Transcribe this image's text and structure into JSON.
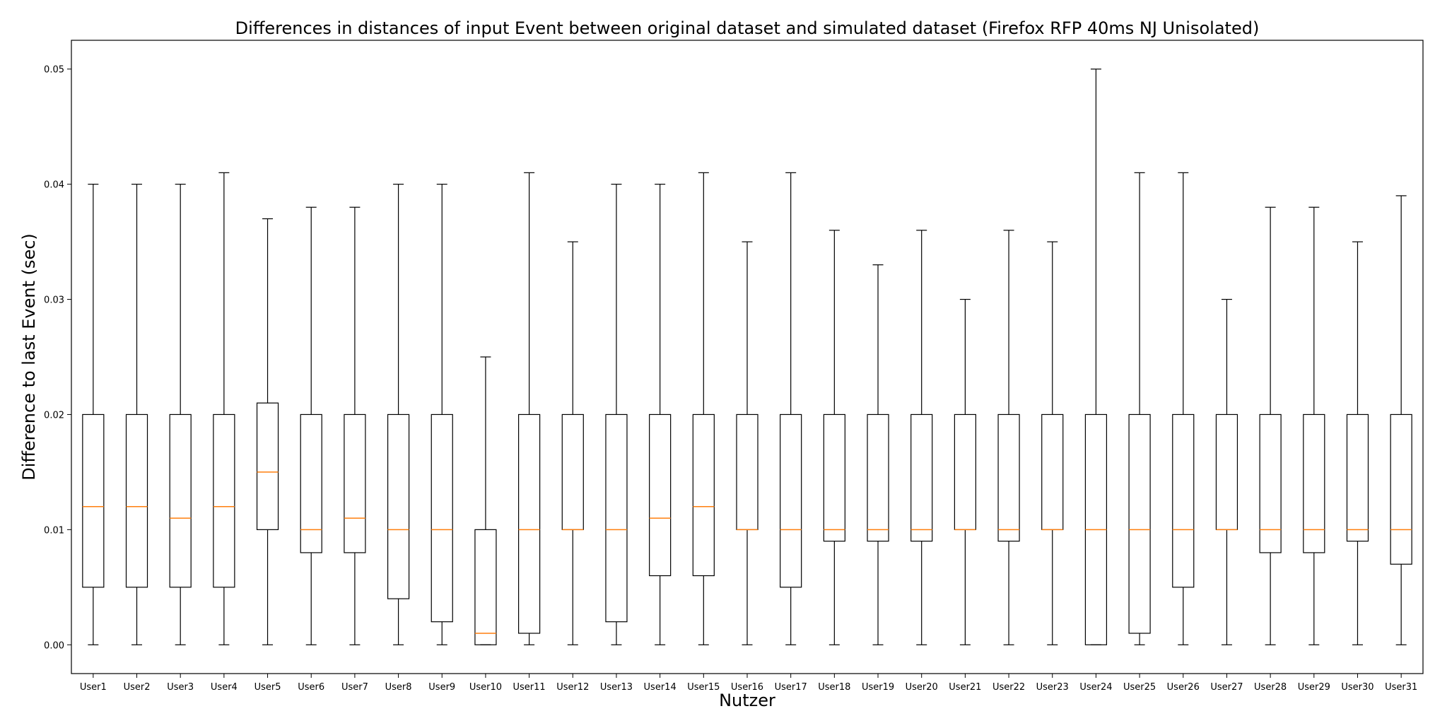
{
  "chart_data": {
    "type": "boxplot",
    "title": "Differences in distances of input Event between original dataset and simulated dataset (Firefox RFP 40ms NJ Unisolated)",
    "xlabel": "Nutzer",
    "ylabel": "Difference to last Event (sec)",
    "ylim": [
      -0.0025,
      0.0525
    ],
    "yticks": [
      0.0,
      0.01,
      0.02,
      0.03,
      0.04,
      0.05
    ],
    "ytick_labels": [
      "0.00",
      "0.01",
      "0.02",
      "0.03",
      "0.04",
      "0.05"
    ],
    "grid": false,
    "colors": {
      "box": "#000000",
      "median": "#ff7f0e"
    },
    "categories": [
      "User1",
      "User2",
      "User3",
      "User4",
      "User5",
      "User6",
      "User7",
      "User8",
      "User9",
      "User10",
      "User11",
      "User12",
      "User13",
      "User14",
      "User15",
      "User16",
      "User17",
      "User18",
      "User19",
      "User20",
      "User21",
      "User22",
      "User23",
      "User24",
      "User25",
      "User26",
      "User27",
      "User28",
      "User29",
      "User30",
      "User31"
    ],
    "boxes": [
      {
        "whislo": 0.0,
        "q1": 0.005,
        "med": 0.012,
        "q3": 0.02,
        "whishi": 0.04
      },
      {
        "whislo": 0.0,
        "q1": 0.005,
        "med": 0.012,
        "q3": 0.02,
        "whishi": 0.04
      },
      {
        "whislo": 0.0,
        "q1": 0.005,
        "med": 0.011,
        "q3": 0.02,
        "whishi": 0.04
      },
      {
        "whislo": 0.0,
        "q1": 0.005,
        "med": 0.012,
        "q3": 0.02,
        "whishi": 0.041
      },
      {
        "whislo": 0.0,
        "q1": 0.01,
        "med": 0.015,
        "q3": 0.021,
        "whishi": 0.037
      },
      {
        "whislo": 0.0,
        "q1": 0.008,
        "med": 0.01,
        "q3": 0.02,
        "whishi": 0.038
      },
      {
        "whislo": 0.0,
        "q1": 0.008,
        "med": 0.011,
        "q3": 0.02,
        "whishi": 0.038
      },
      {
        "whislo": 0.0,
        "q1": 0.004,
        "med": 0.01,
        "q3": 0.02,
        "whishi": 0.04
      },
      {
        "whislo": 0.0,
        "q1": 0.002,
        "med": 0.01,
        "q3": 0.02,
        "whishi": 0.04
      },
      {
        "whislo": 0.0,
        "q1": 0.0,
        "med": 0.001,
        "q3": 0.01,
        "whishi": 0.025
      },
      {
        "whislo": 0.0,
        "q1": 0.001,
        "med": 0.01,
        "q3": 0.02,
        "whishi": 0.041
      },
      {
        "whislo": 0.0,
        "q1": 0.01,
        "med": 0.01,
        "q3": 0.02,
        "whishi": 0.035
      },
      {
        "whislo": 0.0,
        "q1": 0.002,
        "med": 0.01,
        "q3": 0.02,
        "whishi": 0.04
      },
      {
        "whislo": 0.0,
        "q1": 0.006,
        "med": 0.011,
        "q3": 0.02,
        "whishi": 0.04
      },
      {
        "whislo": 0.0,
        "q1": 0.006,
        "med": 0.012,
        "q3": 0.02,
        "whishi": 0.041
      },
      {
        "whislo": 0.0,
        "q1": 0.01,
        "med": 0.01,
        "q3": 0.02,
        "whishi": 0.035
      },
      {
        "whislo": 0.0,
        "q1": 0.005,
        "med": 0.01,
        "q3": 0.02,
        "whishi": 0.041
      },
      {
        "whislo": 0.0,
        "q1": 0.009,
        "med": 0.01,
        "q3": 0.02,
        "whishi": 0.036
      },
      {
        "whislo": 0.0,
        "q1": 0.009,
        "med": 0.01,
        "q3": 0.02,
        "whishi": 0.033
      },
      {
        "whislo": 0.0,
        "q1": 0.009,
        "med": 0.01,
        "q3": 0.02,
        "whishi": 0.036
      },
      {
        "whislo": 0.0,
        "q1": 0.01,
        "med": 0.01,
        "q3": 0.02,
        "whishi": 0.03
      },
      {
        "whislo": 0.0,
        "q1": 0.009,
        "med": 0.01,
        "q3": 0.02,
        "whishi": 0.036
      },
      {
        "whislo": 0.0,
        "q1": 0.01,
        "med": 0.01,
        "q3": 0.02,
        "whishi": 0.035
      },
      {
        "whislo": 0.0,
        "q1": 0.0,
        "med": 0.01,
        "q3": 0.02,
        "whishi": 0.05
      },
      {
        "whislo": 0.0,
        "q1": 0.001,
        "med": 0.01,
        "q3": 0.02,
        "whishi": 0.041
      },
      {
        "whislo": 0.0,
        "q1": 0.005,
        "med": 0.01,
        "q3": 0.02,
        "whishi": 0.041
      },
      {
        "whislo": 0.0,
        "q1": 0.01,
        "med": 0.01,
        "q3": 0.02,
        "whishi": 0.03
      },
      {
        "whislo": 0.0,
        "q1": 0.008,
        "med": 0.01,
        "q3": 0.02,
        "whishi": 0.038
      },
      {
        "whislo": 0.0,
        "q1": 0.008,
        "med": 0.01,
        "q3": 0.02,
        "whishi": 0.038
      },
      {
        "whislo": 0.0,
        "q1": 0.009,
        "med": 0.01,
        "q3": 0.02,
        "whishi": 0.035
      },
      {
        "whislo": 0.0,
        "q1": 0.007,
        "med": 0.01,
        "q3": 0.02,
        "whishi": 0.039
      }
    ]
  }
}
